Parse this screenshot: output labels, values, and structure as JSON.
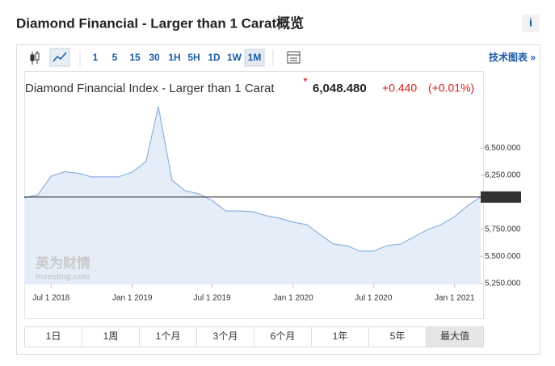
{
  "header": {
    "title": "Diamond Financial - Larger than 1 Carat概览",
    "info": "i"
  },
  "toolbar": {
    "intervals": [
      "1",
      "5",
      "15",
      "30",
      "1H",
      "5H",
      "1D",
      "1W",
      "1M"
    ],
    "tech_chart": "技术图表 »"
  },
  "quote": {
    "name": "Diamond Financial Index - Larger than 1 Carat",
    "price": "6,048.480",
    "change": "+0.440",
    "change_pct": "(+0.01%)"
  },
  "watermark": {
    "cn": "英为财情",
    "en": "Investing.com"
  },
  "ranges": [
    "1日",
    "1周",
    "1个月",
    "3个月",
    "6个月",
    "1年",
    "5年",
    "最大值"
  ],
  "chart_data": {
    "type": "area",
    "x": [
      "2018-05-01",
      "2018-06-01",
      "2018-07-01",
      "2018-08-01",
      "2018-09-01",
      "2018-10-01",
      "2018-11-01",
      "2018-12-01",
      "2019-01-01",
      "2019-02-01",
      "2019-03-01",
      "2019-04-01",
      "2019-05-01",
      "2019-06-01",
      "2019-07-01",
      "2019-08-01",
      "2019-09-01",
      "2019-10-01",
      "2019-11-01",
      "2019-12-01",
      "2020-01-01",
      "2020-02-01",
      "2020-03-01",
      "2020-04-01",
      "2020-05-01",
      "2020-06-01",
      "2020-07-01",
      "2020-08-01",
      "2020-09-01",
      "2020-10-01",
      "2020-11-01",
      "2020-12-01",
      "2021-01-01",
      "2021-02-01",
      "2021-03-01"
    ],
    "values": [
      6040,
      6070,
      6242,
      6283,
      6268,
      6235,
      6235,
      6235,
      6280,
      6377,
      6885,
      6205,
      6107,
      6078,
      6018,
      5920,
      5920,
      5913,
      5876,
      5853,
      5816,
      5793,
      5704,
      5614,
      5599,
      5547,
      5547,
      5599,
      5614,
      5681,
      5748,
      5793,
      5868,
      5973,
      6048.48
    ],
    "color": "#8db3dd",
    "fill": "#e5eef8",
    "xlim": [
      "2018-05-01",
      "2021-03-01"
    ],
    "xticks": [
      {
        "value": "2018-07-01",
        "label": "Jul 1 2018"
      },
      {
        "value": "2019-01-01",
        "label": "Jan 1 2019"
      },
      {
        "value": "2019-07-01",
        "label": "Jul 1 2019"
      },
      {
        "value": "2020-01-01",
        "label": "Jan 1 2020"
      },
      {
        "value": "2020-07-01",
        "label": "Jul 1 2020"
      },
      {
        "value": "2021-01-01",
        "label": "Jan 1 2021"
      }
    ],
    "ylim": [
      5240,
      6960
    ],
    "yticks": [
      {
        "value": 5250,
        "label": "5,250.000"
      },
      {
        "value": 5500,
        "label": "5,500.000"
      },
      {
        "value": 5750,
        "label": "5,750.000"
      },
      {
        "value": 6250,
        "label": "6,250.000"
      },
      {
        "value": 6500,
        "label": "6,500.000"
      }
    ],
    "reference_line": {
      "value": 6048.48,
      "label": "6,048.480"
    }
  }
}
